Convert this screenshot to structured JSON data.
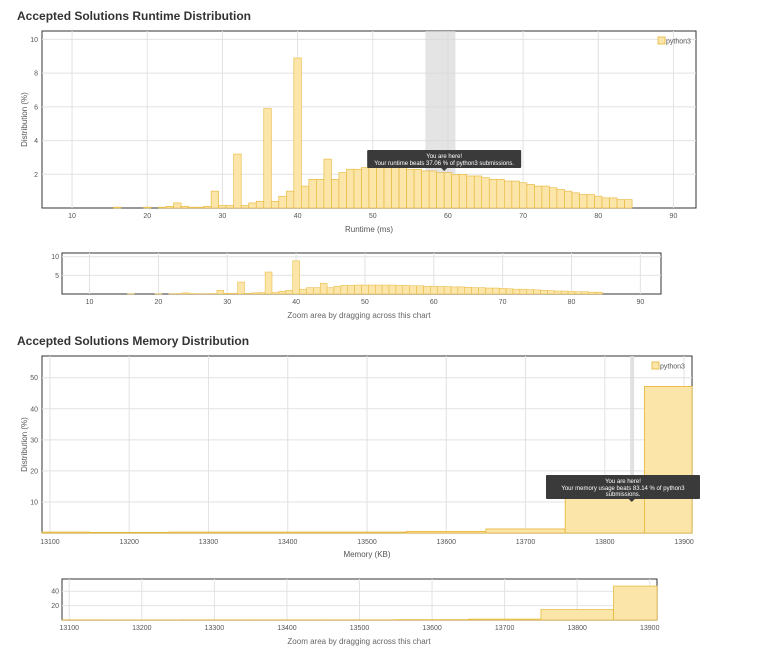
{
  "runtime": {
    "title": "Accepted Solutions Runtime Distribution",
    "ylabel": "Distribution (%)",
    "xlabel": "Runtime (ms)",
    "legend": "python3",
    "zoom_caption": "Zoom area by dragging across this chart",
    "tooltip": {
      "line1": "You are here!",
      "line2": "Your runtime beats 37.06 % of python3 submissions."
    },
    "colors": {
      "bar_fill": "#fbe5a8",
      "bar_stroke": "#e6b534",
      "highlight": "#d9d9d9"
    }
  },
  "memory": {
    "title": "Accepted Solutions Memory Distribution",
    "ylabel": "Distribution (%)",
    "xlabel": "Memory (KB)",
    "legend": "python3",
    "zoom_caption": "Zoom area by dragging across this chart",
    "tooltip": {
      "line1": "You are here!",
      "line2": "Your memory usage beats 83.14 % of python3",
      "line3": "submissions."
    },
    "colors": {
      "bar_fill": "#fbe5a8",
      "bar_stroke": "#e6b534",
      "highlight": "#d9d9d9"
    }
  },
  "chart_data": [
    {
      "type": "bar",
      "name": "runtime-main",
      "xlim": [
        6,
        93
      ],
      "ylim": [
        0,
        10.5
      ],
      "xticks": [
        10,
        20,
        30,
        40,
        50,
        60,
        70,
        80,
        90
      ],
      "yticks": [
        2,
        4,
        6,
        8,
        10
      ],
      "bin_width": 1,
      "highlight_range": [
        57,
        61
      ],
      "you_are_here_x": 59.5,
      "bins": [
        [
          16,
          0.05
        ],
        [
          20,
          0.05
        ],
        [
          22,
          0.05
        ],
        [
          23,
          0.1
        ],
        [
          24,
          0.3
        ],
        [
          25,
          0.1
        ],
        [
          26,
          0.05
        ],
        [
          27,
          0.05
        ],
        [
          28,
          0.1
        ],
        [
          29,
          1.0
        ],
        [
          30,
          0.15
        ],
        [
          31,
          0.15
        ],
        [
          32,
          3.2
        ],
        [
          33,
          0.15
        ],
        [
          34,
          0.3
        ],
        [
          35,
          0.4
        ],
        [
          36,
          5.9
        ],
        [
          37,
          0.4
        ],
        [
          38,
          0.7
        ],
        [
          39,
          1.0
        ],
        [
          40,
          8.9
        ],
        [
          41,
          1.3
        ],
        [
          42,
          1.7
        ],
        [
          43,
          1.7
        ],
        [
          44,
          2.9
        ],
        [
          45,
          1.7
        ],
        [
          46,
          2.1
        ],
        [
          47,
          2.3
        ],
        [
          48,
          2.3
        ],
        [
          49,
          2.4
        ],
        [
          50,
          2.4
        ],
        [
          51,
          2.4
        ],
        [
          52,
          2.4
        ],
        [
          53,
          2.4
        ],
        [
          54,
          2.4
        ],
        [
          55,
          2.3
        ],
        [
          56,
          2.3
        ],
        [
          57,
          2.2
        ],
        [
          58,
          2.2
        ],
        [
          59,
          2.1
        ],
        [
          60,
          2.1
        ],
        [
          61,
          2.0
        ],
        [
          62,
          2.0
        ],
        [
          63,
          1.9
        ],
        [
          64,
          1.9
        ],
        [
          65,
          1.8
        ],
        [
          66,
          1.7
        ],
        [
          67,
          1.7
        ],
        [
          68,
          1.6
        ],
        [
          69,
          1.6
        ],
        [
          70,
          1.5
        ],
        [
          71,
          1.4
        ],
        [
          72,
          1.3
        ],
        [
          73,
          1.3
        ],
        [
          74,
          1.2
        ],
        [
          75,
          1.1
        ],
        [
          76,
          1.0
        ],
        [
          77,
          0.9
        ],
        [
          78,
          0.8
        ],
        [
          79,
          0.8
        ],
        [
          80,
          0.7
        ],
        [
          81,
          0.6
        ],
        [
          82,
          0.6
        ],
        [
          83,
          0.5
        ],
        [
          84,
          0.5
        ]
      ]
    },
    {
      "type": "bar",
      "name": "runtime-zoom",
      "xlim": [
        6,
        93
      ],
      "ylim": [
        0,
        11
      ],
      "xticks": [
        10,
        20,
        30,
        40,
        50,
        60,
        70,
        80,
        90
      ],
      "yticks": [
        5,
        10
      ]
    },
    {
      "type": "bar",
      "name": "memory-main",
      "xlim": [
        13090,
        13910
      ],
      "ylim": [
        0,
        57
      ],
      "xticks": [
        13100,
        13200,
        13300,
        13400,
        13500,
        13600,
        13700,
        13800,
        13900
      ],
      "yticks": [
        10,
        20,
        30,
        40,
        50
      ],
      "highlight_range": [
        13832,
        13837
      ],
      "you_are_here_x": 13834,
      "bins": [
        [
          13090,
          13150,
          0.3
        ],
        [
          13150,
          13250,
          0.2
        ],
        [
          13250,
          13350,
          0.3
        ],
        [
          13350,
          13450,
          0.3
        ],
        [
          13450,
          13550,
          0.3
        ],
        [
          13550,
          13650,
          0.5
        ],
        [
          13650,
          13750,
          1.3
        ],
        [
          13750,
          13850,
          14.5
        ],
        [
          13850,
          13910,
          47.2
        ]
      ]
    },
    {
      "type": "bar",
      "name": "memory-zoom",
      "xlim": [
        13090,
        13910
      ],
      "ylim": [
        0,
        57
      ],
      "xticks": [
        13100,
        13200,
        13300,
        13400,
        13500,
        13600,
        13700,
        13800,
        13900
      ],
      "yticks": [
        20,
        40
      ]
    }
  ]
}
